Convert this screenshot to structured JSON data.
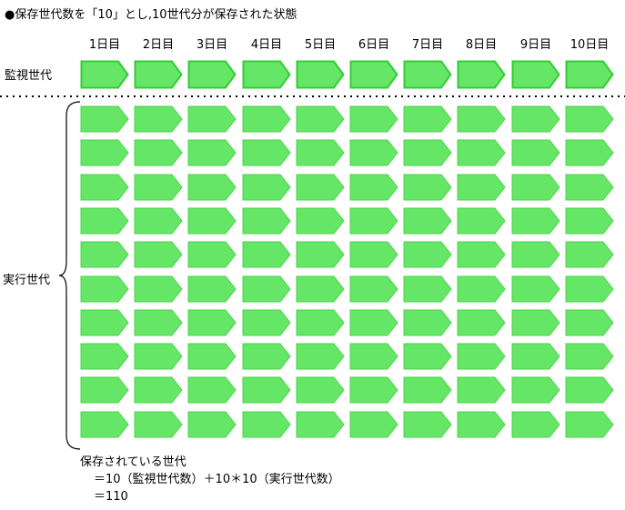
{
  "title": "●保存世代数を「10」とし,10世代分が保存された状態",
  "days": [
    "1日目",
    "2日目",
    "3日目",
    "4日目",
    "5日目",
    "6日目",
    "7日目",
    "8日目",
    "9日目",
    "10日目"
  ],
  "monitor": {
    "label": "監視世代",
    "count": 10
  },
  "execution": {
    "label": "実行世代",
    "rows": 10,
    "cols": 10
  },
  "summary": {
    "lines": [
      "保存されている世代",
      "＝10（監視世代数）＋10＊10（実行世代数）",
      "＝110"
    ]
  },
  "colors": {
    "shape_fill": "#66e666",
    "monitor_border": "#33cc33",
    "grid_border": "#4ad44a",
    "separator": "#000000",
    "brace": "#000000"
  }
}
